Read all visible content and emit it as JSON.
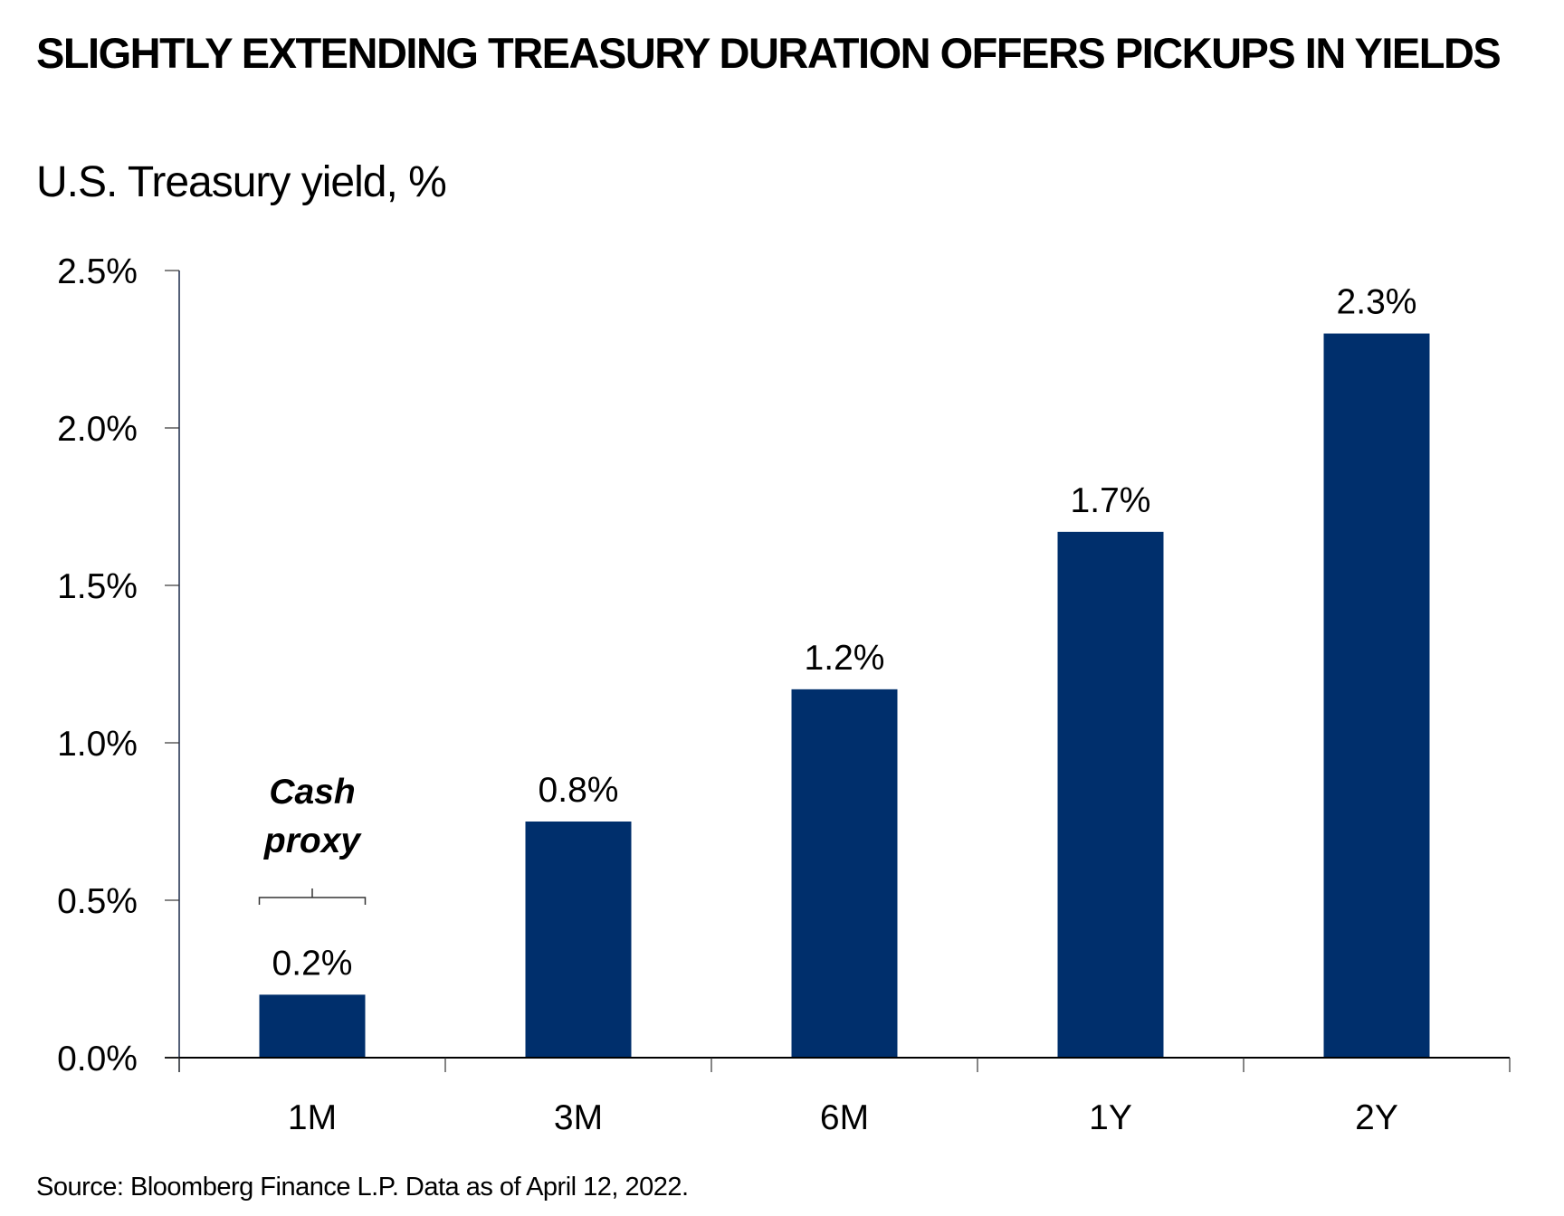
{
  "chart_data": {
    "type": "bar",
    "title": "SLIGHTLY EXTENDING TREASURY DURATION OFFERS PICKUPS IN YIELDS",
    "subtitle": "U.S. Treasury yield, %",
    "categories": [
      "1M",
      "3M",
      "6M",
      "1Y",
      "2Y"
    ],
    "values": [
      0.2,
      0.75,
      1.17,
      1.67,
      2.3
    ],
    "data_labels": [
      "0.2%",
      "0.8%",
      "1.2%",
      "1.7%",
      "2.3%"
    ],
    "ylim": [
      0,
      2.5
    ],
    "yticks": [
      0,
      0.5,
      1.0,
      1.5,
      2.0,
      2.5
    ],
    "ytick_labels": [
      "0.0%",
      "0.5%",
      "1.0%",
      "1.5%",
      "2.0%",
      "2.5%"
    ],
    "xlabel": "",
    "ylabel": "",
    "grid": false,
    "bar_color": "#002F6C",
    "annotation": {
      "lines": [
        "Cash",
        "proxy"
      ],
      "target": "1M"
    },
    "source": "Source: Bloomberg Finance L.P. Data as of April 12, 2022."
  }
}
